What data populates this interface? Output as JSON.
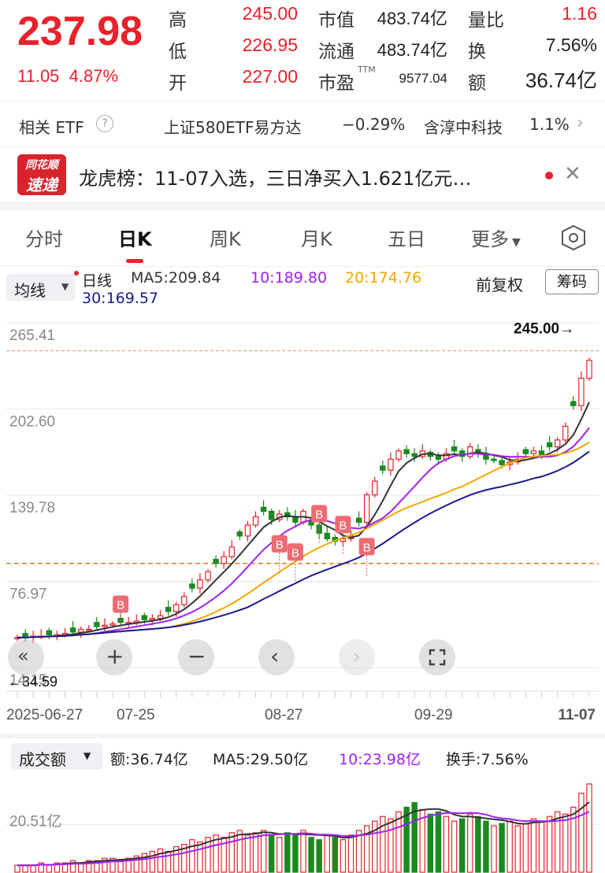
{
  "quote": {
    "price": "237.98",
    "change": "11.05",
    "change_pct": "4.87%",
    "high_label": "高",
    "high_value": "245.00",
    "low_label": "低",
    "low_value": "226.95",
    "open_label": "开",
    "open_value": "227.00",
    "mktcap_label": "市值",
    "mktcap_value": "483.74亿",
    "float_label": "流通",
    "float_value": "483.74亿",
    "pe_label": "市盈",
    "pe_sup": "TTM",
    "pe_value": "9577.04",
    "volratio_label": "量比",
    "volratio_value": "1.16",
    "turnover_label": "换",
    "turnover_value": "7.56%",
    "amount_label": "额",
    "amount_value": "36.74亿"
  },
  "etf": {
    "label": "相关 ETF",
    "help_icon": "question-circle-icon",
    "item1_name": "上证580ETF易方达",
    "item1_change": "−0.29%",
    "item2_name": "含淳中科技",
    "item2_weight": "1.1%"
  },
  "news": {
    "logo_line1": "同花顺",
    "logo_line2": "速递",
    "text": "龙虎榜：11-07入选，三日净买入1.621亿元…",
    "close_icon": "close-icon"
  },
  "tabs": [
    "分时",
    "日K",
    "周K",
    "月K",
    "五日",
    "更多"
  ],
  "active_tab": "日K",
  "chart_header": {
    "ma_button": "均线",
    "period": "日线",
    "ma5": "MA5:209.84",
    "ma10": "10:189.80",
    "ma20": "20:174.76",
    "ma30": "30:169.57",
    "adjust": "前复权",
    "chips": "筹码"
  },
  "colors": {
    "up": "#e8212b",
    "down": "#1a8a1f",
    "ma5": "#333333",
    "ma10": "#a020f0",
    "ma20": "#f0a800",
    "ma30": "#1a1a8c"
  },
  "chart_data": {
    "type": "candlestick",
    "y_ticks": [
      "265.41",
      "202.60",
      "139.78",
      "76.97",
      "14.15"
    ],
    "ylim": [
      14.15,
      265.41
    ],
    "max_marker": "245.00→",
    "min_marker": "←34.59",
    "x_labels": [
      "2025-06-27",
      "07-25",
      "08-27",
      "09-29",
      "11-07"
    ],
    "reference_lines": [
      245.0,
      90.0
    ],
    "candles_close_trend": [
      36,
      36,
      37,
      37,
      38,
      38,
      39,
      40,
      42,
      42,
      44,
      45,
      46,
      47,
      47,
      48,
      49,
      50,
      52,
      55,
      60,
      66,
      72,
      78,
      84,
      90,
      95,
      102,
      110,
      118,
      124,
      128,
      122,
      126,
      124,
      120,
      128,
      118,
      112,
      108,
      106,
      108,
      110,
      120,
      140,
      150,
      158,
      166,
      172,
      170,
      168,
      172,
      168,
      166,
      170,
      172,
      168,
      175,
      170,
      166,
      165,
      162,
      164,
      166,
      170,
      172,
      168,
      175,
      180,
      190,
      205,
      225,
      238
    ]
  },
  "controls": [
    "double-left-icon",
    "zoom-in-icon",
    "zoom-out-icon",
    "prev-icon",
    "next-icon",
    "fullscreen-icon"
  ],
  "volume": {
    "dropdown": "成交额",
    "amount": "额:36.74亿",
    "ma5": "MA5:29.50亿",
    "ma10": "10:23.98亿",
    "turnover": "换手:7.56%",
    "y_tick": "20.51亿",
    "values": [
      3,
      3,
      3,
      4,
      3,
      4,
      4,
      5,
      4,
      5,
      5,
      6,
      6,
      5,
      6,
      7,
      8,
      9,
      10,
      9,
      11,
      12,
      14,
      13,
      15,
      16,
      15,
      17,
      18,
      16,
      17,
      18,
      16,
      15,
      17,
      16,
      18,
      15,
      14,
      16,
      15,
      14,
      16,
      18,
      20,
      22,
      24,
      23,
      26,
      28,
      30,
      27,
      25,
      26,
      24,
      22,
      23,
      25,
      24,
      22,
      20,
      21,
      22,
      20,
      21,
      23,
      22,
      24,
      26,
      25,
      28,
      34,
      38
    ]
  }
}
